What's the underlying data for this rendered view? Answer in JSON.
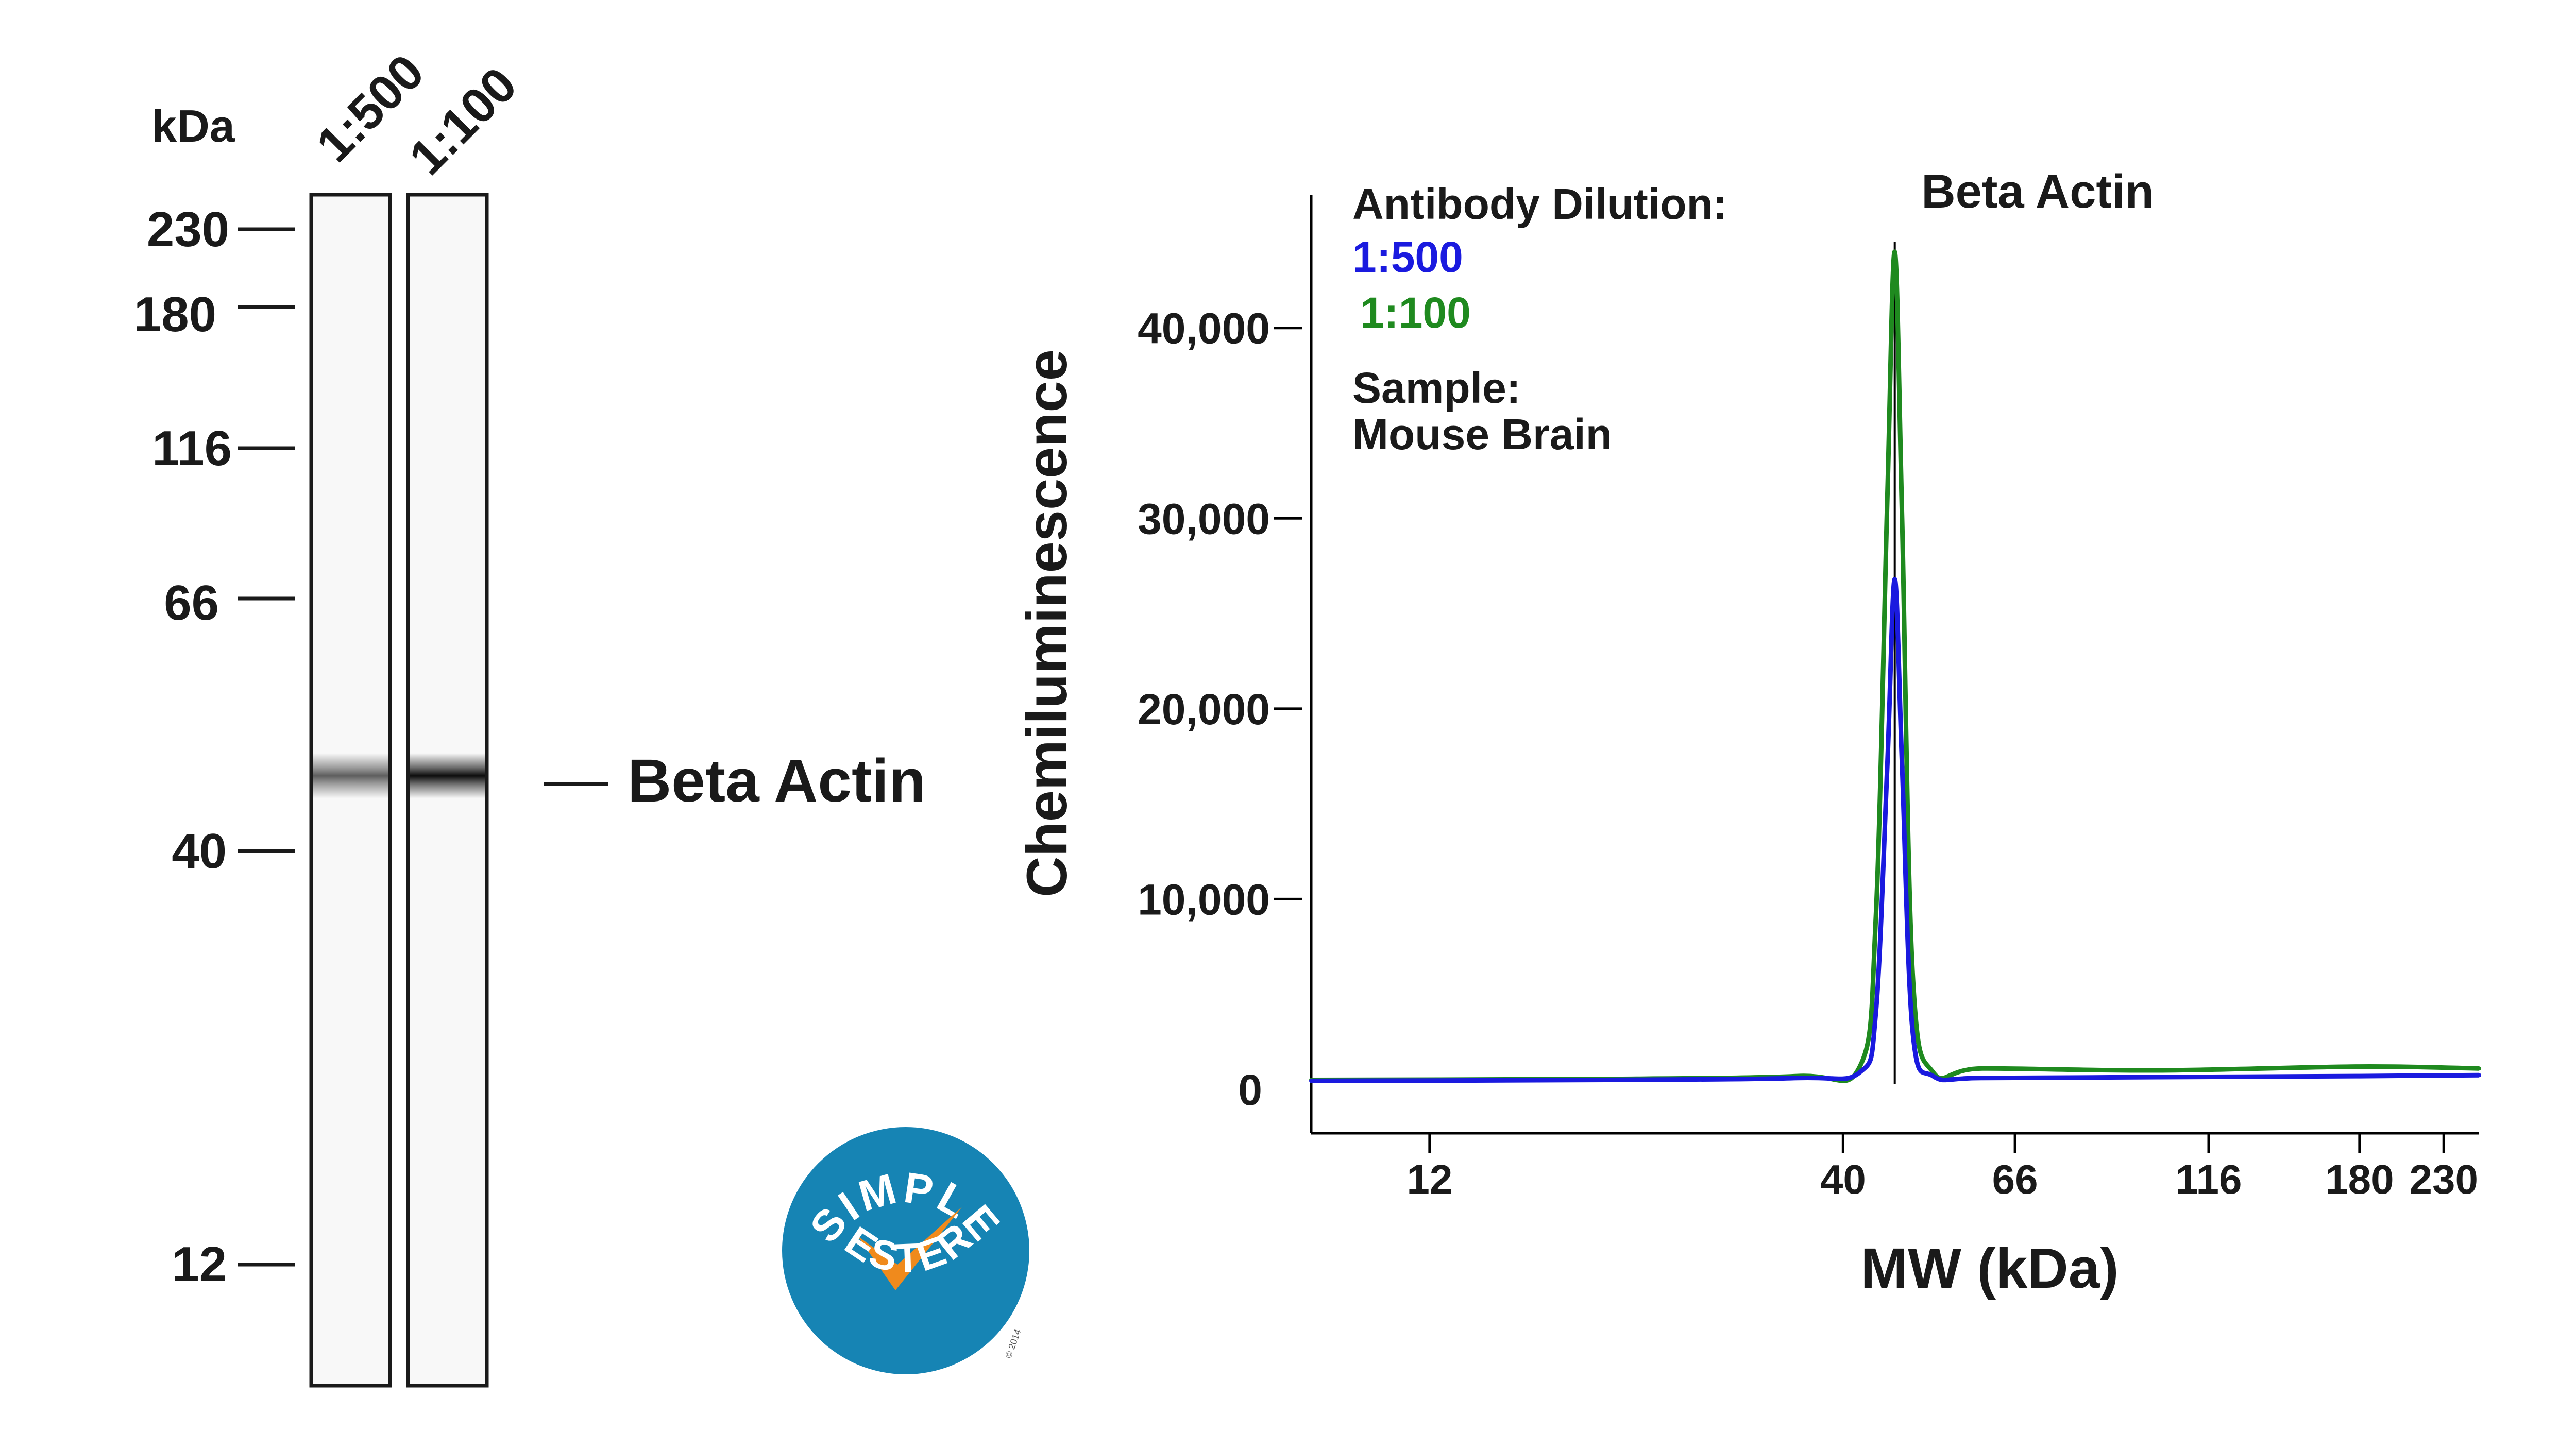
{
  "blot": {
    "unit_label": "kDa",
    "lanes": [
      "1:500",
      "1:100"
    ],
    "band_strength": [
      0.62,
      0.95
    ],
    "markers": [
      "230",
      "180",
      "116",
      "66",
      "40",
      "12"
    ],
    "band_label": "Beta Actin"
  },
  "logo": {
    "top_text": "SIMPLE",
    "bottom_text": "WESTERN",
    "copyright": "© 2014",
    "circle_color": "#1684b4",
    "check_color": "#f08a1c"
  },
  "chart_data": {
    "type": "line",
    "title": "Beta Actin",
    "xlabel": "MW (kDa)",
    "ylabel": "Chemiluminescence",
    "x_scale": "log",
    "xlim": [
      8.5,
      255
    ],
    "ylim": [
      -2300,
      47000
    ],
    "x_ticks": [
      {
        "value": 12,
        "label": "12"
      },
      {
        "value": 40,
        "label": "40"
      },
      {
        "value": 66,
        "label": "66"
      },
      {
        "value": 116,
        "label": "116"
      },
      {
        "value": 180,
        "label": "180"
      },
      {
        "value": 230,
        "label": "230"
      }
    ],
    "y_ticks": [
      {
        "value": 0,
        "label": "0"
      },
      {
        "value": 10000,
        "label": "10,000"
      },
      {
        "value": 20000,
        "label": "20,000"
      },
      {
        "value": 30000,
        "label": "30,000"
      },
      {
        "value": 40000,
        "label": "40,000"
      }
    ],
    "peak_marker_kda": 46.5,
    "legend": {
      "heading": "Antibody Dilution:",
      "sample_heading": "Sample:",
      "sample_value": "Mouse Brain",
      "placement": "top-left"
    },
    "series": [
      {
        "name": "1:500",
        "color": "#1a1adf",
        "x": [
          8.5,
          20,
          35,
          42,
          44,
          45.5,
          46.5,
          47.5,
          49,
          52,
          60,
          100,
          180,
          255
        ],
        "y": [
          450,
          500,
          600,
          900,
          4000,
          17000,
          26800,
          17000,
          3000,
          700,
          600,
          650,
          700,
          750
        ]
      },
      {
        "name": "1:100",
        "color": "#1f8a1f",
        "x": [
          8.5,
          20,
          35,
          42,
          44,
          45.5,
          46.5,
          47.5,
          49,
          52,
          60,
          100,
          180,
          255
        ],
        "y": [
          500,
          550,
          700,
          1200,
          9000,
          31000,
          44000,
          30000,
          6000,
          900,
          1100,
          1000,
          1200,
          1100
        ]
      }
    ]
  }
}
